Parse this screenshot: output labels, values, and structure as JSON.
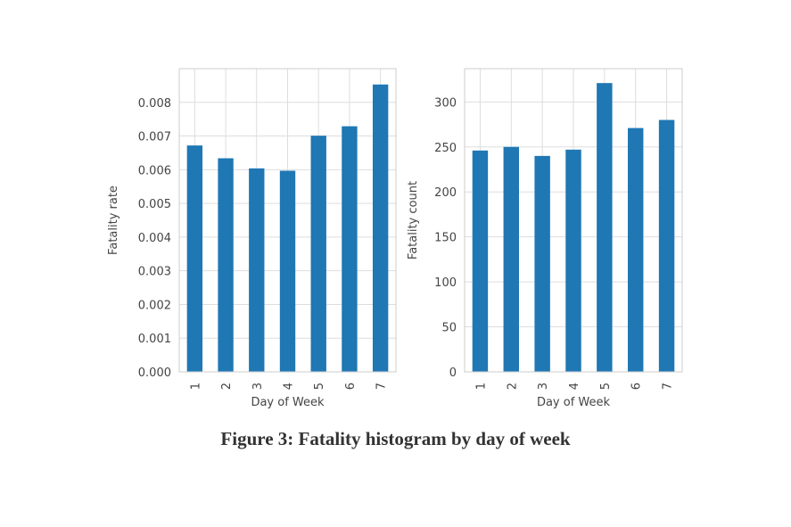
{
  "caption": "Figure 3: Fatality histogram by day of week",
  "chart_data": [
    {
      "type": "bar",
      "title": "",
      "xlabel": "Day of Week",
      "ylabel": "Fatality rate",
      "categories": [
        "1",
        "2",
        "3",
        "4",
        "5",
        "6",
        "7"
      ],
      "values": [
        0.00672,
        0.00634,
        0.00604,
        0.00597,
        0.00701,
        0.00729,
        0.00853
      ],
      "ylim": [
        0,
        0.009
      ],
      "yticks": [
        0,
        0.001,
        0.002,
        0.003,
        0.004,
        0.005,
        0.006,
        0.007,
        0.008
      ],
      "ytick_labels": [
        "0.000",
        "0.001",
        "0.002",
        "0.003",
        "0.004",
        "0.005",
        "0.006",
        "0.007",
        "0.008"
      ],
      "grid": true,
      "bar_color": "#1f77b4"
    },
    {
      "type": "bar",
      "title": "",
      "xlabel": "Day of Week",
      "ylabel": "Fatality count",
      "categories": [
        "1",
        "2",
        "3",
        "4",
        "5",
        "6",
        "7"
      ],
      "values": [
        246,
        250,
        240,
        247,
        321,
        271,
        280
      ],
      "ylim": [
        0,
        337
      ],
      "yticks": [
        0,
        50,
        100,
        150,
        200,
        250,
        300
      ],
      "ytick_labels": [
        "0",
        "50",
        "100",
        "150",
        "200",
        "250",
        "300"
      ],
      "grid": true,
      "bar_color": "#1f77b4"
    }
  ]
}
